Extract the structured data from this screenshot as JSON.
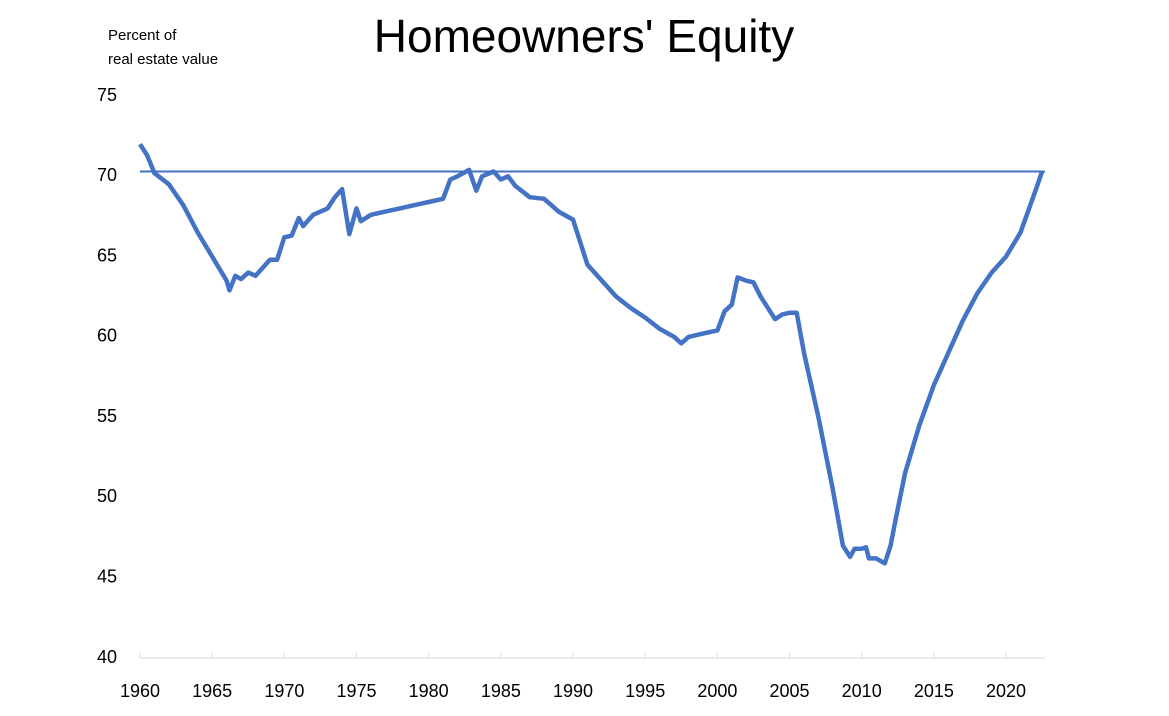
{
  "chart_data": {
    "type": "line",
    "title": "Homeowners' Equity",
    "ylabel": [
      "Percent of",
      "real estate value"
    ],
    "x": [
      1960,
      1960.5,
      1961,
      1962,
      1963,
      1964,
      1965,
      1966,
      1966.2,
      1966.6,
      1967,
      1967.5,
      1968,
      1969,
      1969.5,
      1970,
      1970.5,
      1971,
      1971.3,
      1972,
      1973,
      1973.5,
      1974,
      1974.5,
      1975,
      1975.3,
      1976,
      1977,
      1978,
      1979,
      1980,
      1981,
      1981.5,
      1982,
      1982.8,
      1983.3,
      1983.7,
      1984.5,
      1985,
      1985.5,
      1986,
      1987,
      1988,
      1989,
      1990,
      1991,
      1992,
      1993,
      1994,
      1995,
      1996,
      1997,
      1997.5,
      1998,
      1999,
      2000,
      2000.5,
      2001,
      2001.4,
      2002,
      2002.5,
      2003,
      2004,
      2004.5,
      2005,
      2005.5,
      2006,
      2007,
      2008,
      2008.7,
      2009.2,
      2009.5,
      2010,
      2010.3,
      2010.5,
      2011,
      2011.6,
      2012,
      2012.3,
      2013,
      2014,
      2015,
      2016,
      2017,
      2018,
      2019,
      2020,
      2021,
      2022,
      2022.5
    ],
    "series": [
      {
        "color": "#4472c4",
        "values": [
          72.0,
          71.3,
          70.2,
          69.5,
          68.2,
          66.5,
          65.0,
          63.5,
          62.9,
          63.8,
          63.6,
          64.0,
          63.8,
          64.8,
          64.8,
          66.2,
          66.3,
          67.4,
          66.9,
          67.6,
          68.0,
          68.7,
          69.2,
          66.4,
          68.0,
          67.2,
          67.6,
          67.8,
          68.0,
          68.2,
          68.4,
          68.6,
          69.8,
          70.0,
          70.4,
          69.1,
          70.0,
          70.3,
          69.8,
          70.0,
          69.4,
          68.7,
          68.6,
          67.8,
          67.3,
          64.5,
          63.5,
          62.5,
          61.8,
          61.2,
          60.5,
          60.0,
          59.6,
          60.0,
          60.2,
          60.4,
          61.6,
          62.0,
          63.7,
          63.5,
          63.4,
          62.5,
          61.1,
          61.4,
          61.5,
          61.5,
          59.0,
          55.0,
          50.5,
          47.0,
          46.3,
          46.8,
          46.8,
          46.9,
          46.2,
          46.2,
          45.9,
          47.0,
          48.4,
          51.5,
          54.5,
          57.0,
          59.0,
          61.0,
          62.7,
          64.0,
          65.0,
          66.5,
          69.0,
          70.3
        ]
      }
    ],
    "reference_line": 70.3,
    "xlim": [
      1960,
      2022.7
    ],
    "xticks": [
      1960,
      1965,
      1970,
      1975,
      1980,
      1985,
      1990,
      1995,
      2000,
      2005,
      2010,
      2015,
      2020
    ],
    "ylim": [
      40,
      75
    ],
    "yticks": [
      40,
      45,
      50,
      55,
      60,
      65,
      70,
      75
    ],
    "grid": false
  }
}
